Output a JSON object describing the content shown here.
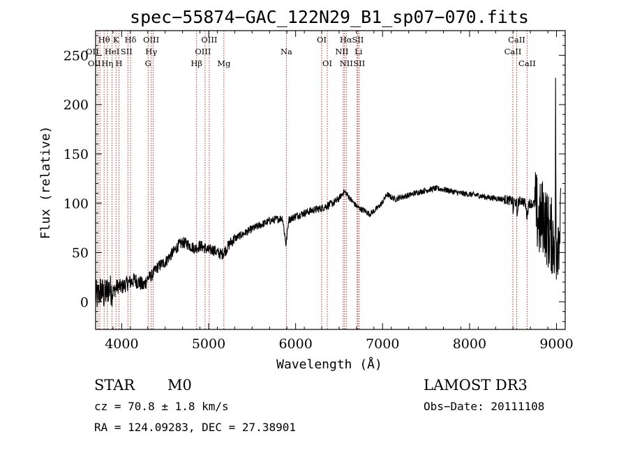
{
  "chart_data": {
    "type": "line",
    "title": "spec−55874−GAC_122N29_B1_sp07−070.fits",
    "xlabel": "Wavelength (Å)",
    "ylabel": "Flux (relative)",
    "xlim": [
      3700,
      9100
    ],
    "ylim": [
      -28,
      275
    ],
    "x_ticks": [
      4000,
      5000,
      6000,
      7000,
      8000,
      9000
    ],
    "y_ticks": [
      0,
      50,
      100,
      150,
      200,
      250
    ],
    "grid": false,
    "spectrum_anchors": [
      [
        3700,
        8
      ],
      [
        3720,
        5
      ],
      [
        3760,
        12
      ],
      [
        3800,
        6
      ],
      [
        3850,
        14
      ],
      [
        3900,
        10
      ],
      [
        3950,
        16
      ],
      [
        4000,
        15
      ],
      [
        4050,
        18
      ],
      [
        4100,
        20
      ],
      [
        4150,
        22
      ],
      [
        4200,
        20
      ],
      [
        4250,
        16
      ],
      [
        4300,
        24
      ],
      [
        4350,
        27
      ],
      [
        4400,
        34
      ],
      [
        4450,
        38
      ],
      [
        4500,
        40
      ],
      [
        4550,
        46
      ],
      [
        4600,
        51
      ],
      [
        4650,
        57
      ],
      [
        4700,
        60
      ],
      [
        4750,
        59
      ],
      [
        4800,
        56
      ],
      [
        4850,
        54
      ],
      [
        4900,
        57
      ],
      [
        4950,
        55
      ],
      [
        5000,
        52
      ],
      [
        5050,
        53
      ],
      [
        5100,
        50
      ],
      [
        5150,
        48
      ],
      [
        5200,
        53
      ],
      [
        5250,
        60
      ],
      [
        5300,
        64
      ],
      [
        5400,
        69
      ],
      [
        5500,
        74
      ],
      [
        5600,
        78
      ],
      [
        5700,
        82
      ],
      [
        5800,
        84
      ],
      [
        5850,
        85
      ],
      [
        5890,
        58
      ],
      [
        5920,
        83
      ],
      [
        6000,
        87
      ],
      [
        6100,
        90
      ],
      [
        6200,
        93
      ],
      [
        6300,
        95
      ],
      [
        6400,
        99
      ],
      [
        6450,
        101
      ],
      [
        6500,
        105
      ],
      [
        6560,
        112
      ],
      [
        6600,
        108
      ],
      [
        6650,
        102
      ],
      [
        6700,
        97
      ],
      [
        6750,
        94
      ],
      [
        6800,
        92
      ],
      [
        6850,
        89
      ],
      [
        6900,
        92
      ],
      [
        6950,
        96
      ],
      [
        7000,
        101
      ],
      [
        7050,
        109
      ],
      [
        7100,
        106
      ],
      [
        7150,
        104
      ],
      [
        7200,
        106
      ],
      [
        7300,
        108
      ],
      [
        7400,
        111
      ],
      [
        7500,
        113
      ],
      [
        7600,
        115
      ],
      [
        7700,
        114
      ],
      [
        7800,
        112
      ],
      [
        7900,
        110
      ],
      [
        8000,
        109
      ],
      [
        8100,
        108
      ],
      [
        8200,
        106
      ],
      [
        8300,
        105
      ],
      [
        8400,
        104
      ],
      [
        8498,
        102
      ],
      [
        8500,
        88
      ],
      [
        8510,
        102
      ],
      [
        8542,
        100
      ],
      [
        8545,
        85
      ],
      [
        8560,
        101
      ],
      [
        8600,
        103
      ],
      [
        8640,
        100
      ],
      [
        8662,
        86
      ],
      [
        8680,
        100
      ],
      [
        8700,
        100
      ],
      [
        8750,
        99
      ],
      [
        8800,
        80
      ],
      [
        8850,
        88
      ],
      [
        8900,
        72
      ],
      [
        9000,
        60
      ],
      [
        9050,
        80
      ]
    ],
    "spectral_lines": [
      {
        "wave": 3727,
        "label": "OII",
        "row": 2,
        "dx": -8
      },
      {
        "wave": 3750,
        "label": "OII",
        "row": 3,
        "dx": -8
      },
      {
        "wave": 3798,
        "label": "Hθ",
        "row": 1,
        "dx": 0
      },
      {
        "wave": 3835,
        "label": "Hη",
        "row": 3,
        "dx": 0
      },
      {
        "wave": 3889,
        "label": "HeI",
        "row": 2,
        "dx": 0
      },
      {
        "wave": 3934,
        "label": "K",
        "row": 1,
        "dx": 0
      },
      {
        "wave": 3969,
        "label": "H",
        "row": 3,
        "dx": 0
      },
      {
        "wave": 4072,
        "label": "SII",
        "row": 2,
        "dx": -2
      },
      {
        "wave": 4102,
        "label": "Hδ",
        "row": 1,
        "dx": 0
      },
      {
        "wave": 4304,
        "label": "G",
        "row": 3,
        "dx": 0
      },
      {
        "wave": 4340,
        "label": "Hγ",
        "row": 2,
        "dx": 0
      },
      {
        "wave": 4363,
        "label": "OIII",
        "row": 1,
        "dx": -3
      },
      {
        "wave": 4861,
        "label": "Hβ",
        "row": 3,
        "dx": 0
      },
      {
        "wave": 4959,
        "label": "OIII",
        "row": 2,
        "dx": -3
      },
      {
        "wave": 5007,
        "label": "OIII",
        "row": 1,
        "dx": 0
      },
      {
        "wave": 5175,
        "label": "Mg",
        "row": 3,
        "dx": 0
      },
      {
        "wave": 5894,
        "label": "Na",
        "row": 2,
        "dx": 0
      },
      {
        "wave": 6300,
        "label": "OI",
        "row": 1,
        "dx": 0
      },
      {
        "wave": 6364,
        "label": "OI",
        "row": 3,
        "dx": 0
      },
      {
        "wave": 6548,
        "label": "NII",
        "row": 2,
        "dx": -2
      },
      {
        "wave": 6563,
        "label": "Hα",
        "row": 1,
        "dx": 2
      },
      {
        "wave": 6583,
        "label": "NII",
        "row": 3,
        "dx": 0
      },
      {
        "wave": 6707,
        "label": "Li",
        "row": 2,
        "dx": 2
      },
      {
        "wave": 6716,
        "label": "SII",
        "row": 1,
        "dx": 0
      },
      {
        "wave": 6731,
        "label": "SII",
        "row": 3,
        "dx": 0
      },
      {
        "wave": 8498,
        "label": "CaII",
        "row": 2,
        "dx": 0
      },
      {
        "wave": 8542,
        "label": "CaII",
        "row": 1,
        "dx": 0
      },
      {
        "wave": 8662,
        "label": "CaII",
        "row": 3,
        "dx": 0
      }
    ],
    "line_color": "#000000",
    "marker_color": "#b03030"
  },
  "info": {
    "object_class": "STAR",
    "subclass": "M0",
    "survey": "LAMOST DR3",
    "cz": "cz = 70.8 ± 1.8 km/s",
    "obs_date": "Obs−Date: 20111108",
    "radec": "RA = 124.09283, DEC =  27.38901"
  }
}
